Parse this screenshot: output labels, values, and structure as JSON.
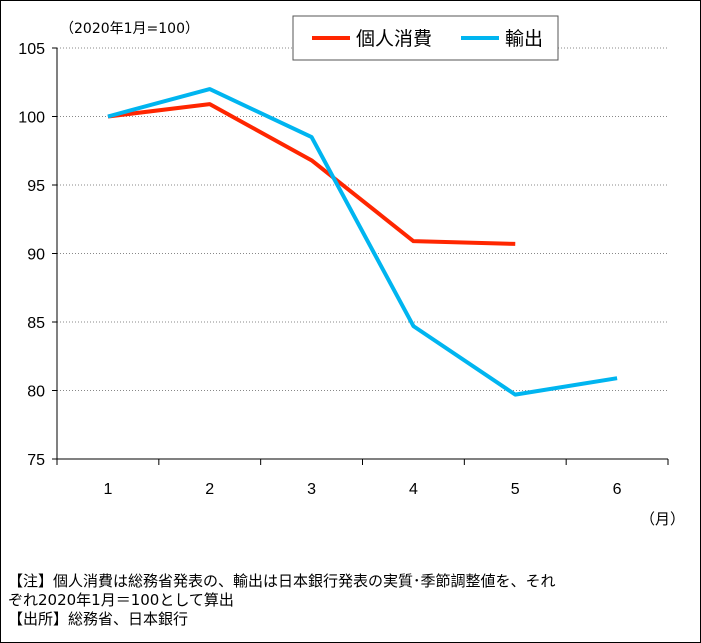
{
  "chart_data": {
    "type": "line",
    "unit_label": "（2020年1月=100）",
    "x_unit_label": "（月）",
    "categories": [
      "1",
      "2",
      "3",
      "4",
      "5",
      "6"
    ],
    "ylim": [
      75,
      105
    ],
    "yticks": [
      75,
      80,
      85,
      90,
      95,
      100,
      105
    ],
    "grid": true,
    "legend_position": "top-right",
    "series": [
      {
        "name": "個人消費",
        "color": "#ff2600",
        "values": [
          100,
          100.9,
          96.8,
          90.9,
          90.7,
          null
        ]
      },
      {
        "name": "輸出",
        "color": "#00b5f0",
        "values": [
          100,
          102.0,
          98.5,
          84.7,
          79.7,
          80.9
        ]
      }
    ]
  },
  "notes": {
    "line1": "【注】個人消費は総務省発表の、輸出は日本銀行発表の実質･季節調整値を、それ",
    "line2": "ぞれ2020年1月＝100として算出",
    "line3": "【出所】総務省、日本銀行"
  }
}
